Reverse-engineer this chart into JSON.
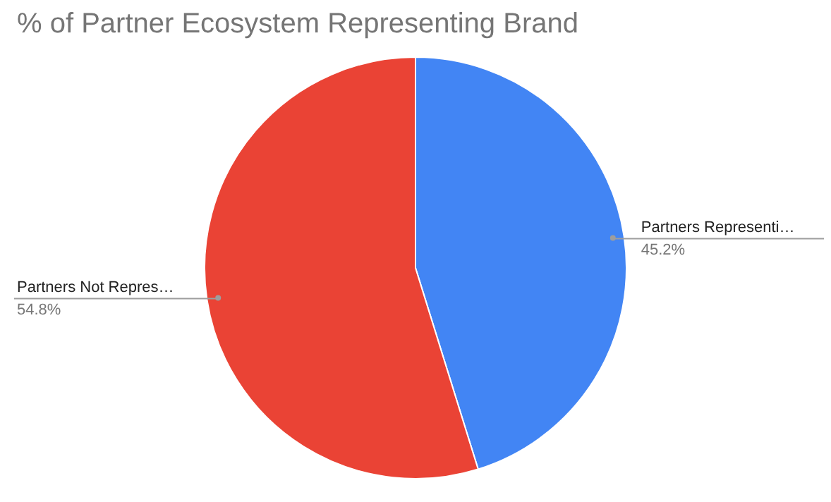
{
  "chart_data": {
    "type": "pie",
    "title": "% of Partner Ecosystem Representing Brand",
    "categories": [
      "Partners Representi…",
      "Partners Not Repres…"
    ],
    "values": [
      45.2,
      54.8
    ],
    "value_labels": [
      "45.2%",
      "54.8%"
    ],
    "colors": [
      "#4285f4",
      "#ea4335"
    ]
  }
}
